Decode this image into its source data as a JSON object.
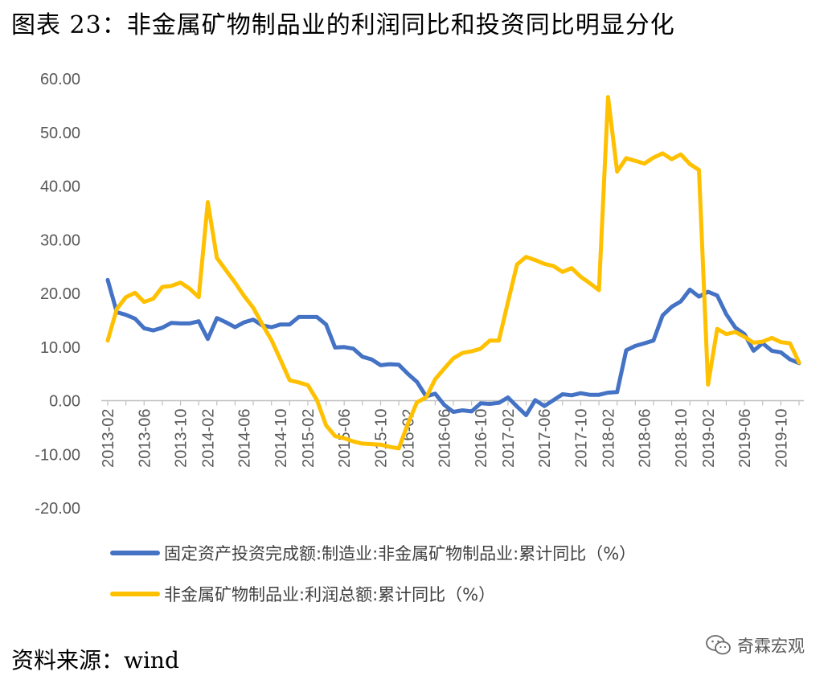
{
  "page": {
    "title": "图表 23：非金属矿物制品业的利润同比和投资同比明显分化",
    "source": "资料来源：wind",
    "watermark": "奇霖宏观"
  },
  "colors": {
    "series1": "#4472C4",
    "series2": "#FFC000",
    "axis": "#BFBFBF",
    "tick_text": "#595959"
  },
  "chart_data": {
    "type": "line",
    "title": "",
    "xlabel": "",
    "ylabel": "",
    "ylim": [
      -20,
      60
    ],
    "yticks": [
      "60.00",
      "50.00",
      "40.00",
      "30.00",
      "20.00",
      "10.00",
      "0.00",
      "-10.00",
      "-20.00"
    ],
    "grid": false,
    "legend_position": "bottom",
    "x": [
      "2013-02",
      "2013-03",
      "2013-04",
      "2013-05",
      "2013-06",
      "2013-07",
      "2013-08",
      "2013-09",
      "2013-10",
      "2013-11",
      "2013-12",
      "2014-02",
      "2014-03",
      "2014-04",
      "2014-05",
      "2014-06",
      "2014-07",
      "2014-08",
      "2014-09",
      "2014-10",
      "2014-11",
      "2014-12",
      "2015-02",
      "2015-03",
      "2015-04",
      "2015-05",
      "2015-06",
      "2015-07",
      "2015-08",
      "2015-09",
      "2015-10",
      "2015-11",
      "2015-12",
      "2016-02",
      "2016-03",
      "2016-04",
      "2016-05",
      "2016-06",
      "2016-07",
      "2016-08",
      "2016-09",
      "2016-10",
      "2016-11",
      "2016-12",
      "2017-02",
      "2017-03",
      "2017-04",
      "2017-05",
      "2017-06",
      "2017-07",
      "2017-08",
      "2017-09",
      "2017-10",
      "2017-11",
      "2017-12",
      "2018-02",
      "2018-03",
      "2018-04",
      "2018-05",
      "2018-06",
      "2018-07",
      "2018-08",
      "2018-09",
      "2018-10",
      "2018-11",
      "2018-12",
      "2019-02",
      "2019-03",
      "2019-04",
      "2019-05",
      "2019-06",
      "2019-07",
      "2019-08",
      "2019-09",
      "2019-10",
      "2019-11",
      "2019-12"
    ],
    "x_tick_labels": [
      "2013-02",
      "2013-06",
      "2013-10",
      "2014-02",
      "2014-06",
      "2014-10",
      "2015-02",
      "2015-06",
      "2015-10",
      "2016-02",
      "2016-06",
      "2016-10",
      "2017-02",
      "2017-06",
      "2017-10",
      "2018-02",
      "2018-06",
      "2018-10",
      "2019-02",
      "2019-06",
      "2019-10"
    ],
    "series": [
      {
        "name": "固定资产投资完成额:制造业:非金属矿物制品业:累计同比（%）",
        "values": [
          22.5,
          16.5,
          16.0,
          15.3,
          13.5,
          13.1,
          13.6,
          14.5,
          14.4,
          14.4,
          14.8,
          11.5,
          15.4,
          14.6,
          13.7,
          14.6,
          15.1,
          14.0,
          13.7,
          14.2,
          14.2,
          15.6,
          15.6,
          15.6,
          14.2,
          9.9,
          10.0,
          9.7,
          8.2,
          7.7,
          6.6,
          6.8,
          6.7,
          5.0,
          3.5,
          0.8,
          1.3,
          -0.8,
          -2.1,
          -1.8,
          -2.0,
          -0.5,
          -0.6,
          -0.4,
          0.6,
          -1.1,
          -2.7,
          0.1,
          -1.0,
          0.1,
          1.2,
          1.0,
          1.4,
          1.1,
          1.1,
          1.5,
          1.6,
          9.4,
          10.2,
          10.7,
          11.2,
          15.9,
          17.5,
          18.5,
          20.7,
          19.4,
          20.3,
          19.6,
          16.1,
          13.6,
          12.4,
          9.3,
          10.7,
          9.3,
          9.0,
          7.7,
          7.0
        ]
      },
      {
        "name": "非金属矿物制品业:利润总额:累计同比（%）",
        "values": [
          11.2,
          17.1,
          19.3,
          20.1,
          18.4,
          19.0,
          21.2,
          21.4,
          22.0,
          20.9,
          19.3,
          37.0,
          26.6,
          24.3,
          22.0,
          19.5,
          17.3,
          14.2,
          11.3,
          7.6,
          3.8,
          3.4,
          2.9,
          0.1,
          -4.6,
          -6.6,
          -7.0,
          -7.6,
          -8.0,
          -8.1,
          -8.2,
          -8.6,
          -8.9,
          -4.3,
          -0.3,
          0.6,
          4.0,
          6.0,
          7.9,
          8.9,
          9.2,
          9.7,
          11.2,
          11.2,
          18.4,
          25.4,
          26.8,
          26.2,
          25.5,
          25.1,
          24.0,
          24.7,
          23.1,
          21.9,
          20.6,
          56.6,
          42.7,
          45.2,
          44.7,
          44.2,
          45.3,
          46.1,
          45.0,
          45.9,
          44.1,
          43.0,
          3.0,
          13.4,
          12.4,
          12.8,
          11.9,
          10.8,
          11.0,
          11.7,
          10.9,
          10.7,
          7.1
        ]
      }
    ]
  }
}
